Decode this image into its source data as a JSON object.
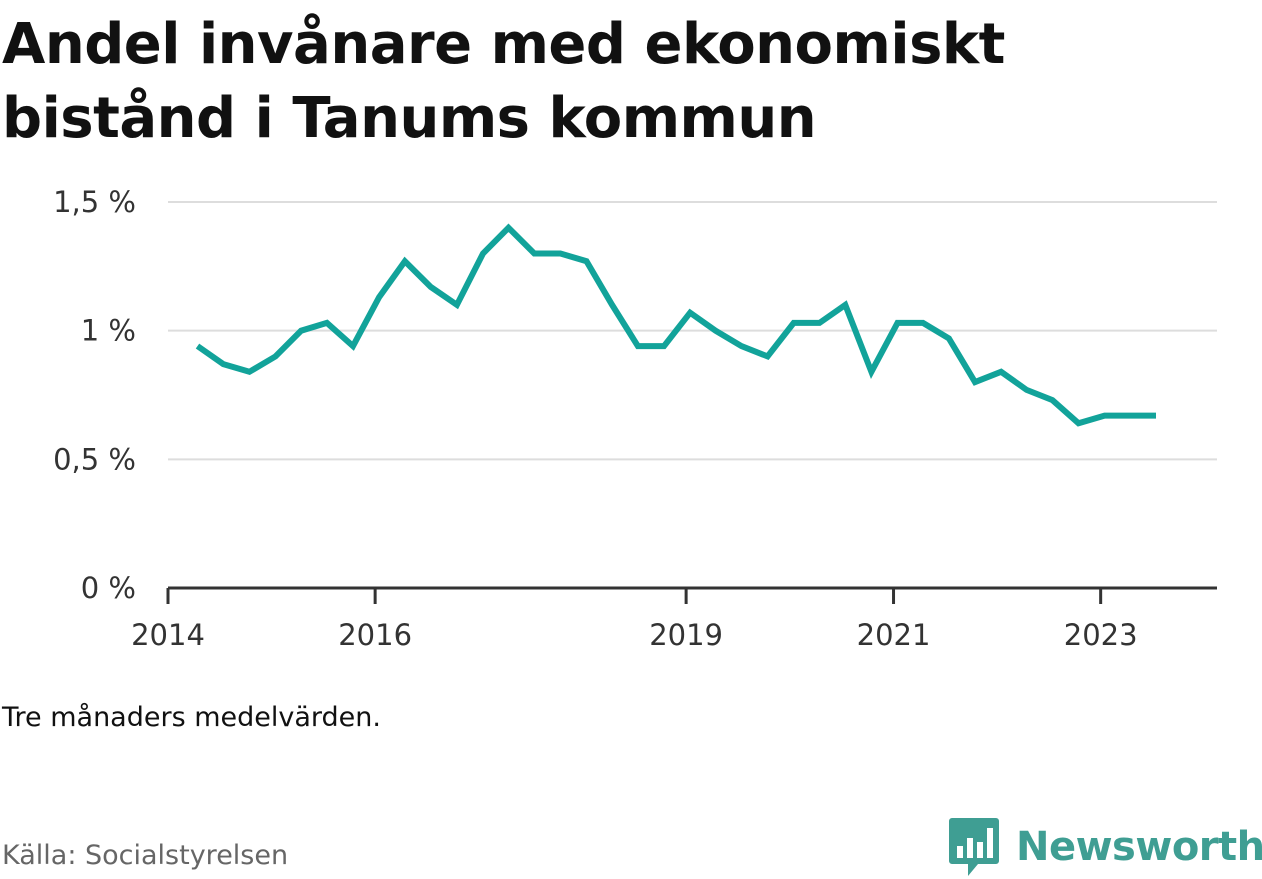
{
  "title": "Andel invånare med ekonomiskt bistånd i Tanums kommun",
  "note": "Tre månaders medelvärden.",
  "source": "Källa: Socialstyrelsen",
  "brand": {
    "name": "Newsworthy",
    "icon": "newsworthy-logo-icon",
    "color": "#3f9e93"
  },
  "colors": {
    "line": "#12a39a",
    "grid": "#dddddd",
    "axis": "#333333"
  },
  "chart_data": {
    "type": "line",
    "title": "Andel invånare med ekonomiskt bistånd i Tanums kommun",
    "xlabel": "",
    "ylabel": "",
    "ylim": [
      0,
      1.5
    ],
    "yticks": [
      {
        "value": 0,
        "label": "0 %"
      },
      {
        "value": 0.5,
        "label": "0,5 %"
      },
      {
        "value": 1,
        "label": "1 %"
      },
      {
        "value": 1.5,
        "label": "1,5 %"
      }
    ],
    "xlim": [
      "2014-01-01",
      "2024-02-15"
    ],
    "xticks": [
      {
        "value": "2014-01-01",
        "label": "2014"
      },
      {
        "value": "2016-01-01",
        "label": "2016"
      },
      {
        "value": "2019-01-01",
        "label": "2019"
      },
      {
        "value": "2021-01-01",
        "label": "2021"
      },
      {
        "value": "2023-01-01",
        "label": "2023"
      }
    ],
    "grid": true,
    "series": [
      {
        "x": [
          "2014-04",
          "2014-07",
          "2014-10",
          "2015-01",
          "2015-04",
          "2015-07",
          "2015-10",
          "2016-01",
          "2016-04",
          "2016-07",
          "2016-10",
          "2017-01",
          "2017-04",
          "2017-07",
          "2017-10",
          "2018-01",
          "2018-04",
          "2018-07",
          "2018-10",
          "2019-01",
          "2019-04",
          "2019-07",
          "2019-10",
          "2020-01",
          "2020-04",
          "2020-07",
          "2020-10",
          "2021-01",
          "2021-04",
          "2021-07",
          "2021-10",
          "2022-01",
          "2022-04",
          "2022-07",
          "2022-10",
          "2023-01",
          "2023-04",
          "2023-07"
        ],
        "values": [
          0.94,
          0.87,
          0.84,
          0.9,
          1.0,
          1.03,
          0.94,
          1.13,
          1.27,
          1.17,
          1.1,
          1.3,
          1.4,
          1.3,
          1.3,
          1.27,
          1.1,
          0.94,
          0.94,
          1.07,
          1.0,
          0.94,
          0.9,
          1.03,
          1.03,
          1.1,
          0.84,
          1.03,
          1.03,
          0.97,
          0.8,
          0.84,
          0.77,
          0.73,
          0.64,
          0.67,
          0.67,
          0.67
        ]
      }
    ]
  }
}
